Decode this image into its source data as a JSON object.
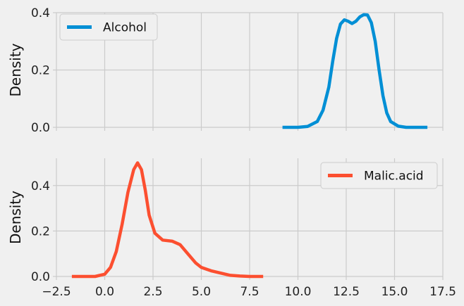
{
  "chart_data": [
    {
      "type": "line",
      "ylabel": "Density",
      "xlabel": "",
      "xlim": [
        -2.5,
        17.5
      ],
      "ylim": [
        0,
        0.4
      ],
      "yticks": [
        0.0,
        0.2,
        0.4
      ],
      "ytick_labels": [
        "0.0",
        "0.2",
        "0.4"
      ],
      "x_tick_labels_shown": false,
      "grid": true,
      "legend_position": "upper-left",
      "series": [
        {
          "name": "Alcohol",
          "color": "#008fd5",
          "x": [
            9.2,
            10.0,
            10.5,
            11.0,
            11.3,
            11.6,
            11.8,
            12.0,
            12.2,
            12.4,
            12.6,
            12.8,
            13.0,
            13.2,
            13.4,
            13.6,
            13.8,
            14.0,
            14.2,
            14.4,
            14.6,
            14.8,
            15.2,
            15.6,
            16.0,
            16.7
          ],
          "y": [
            0.0,
            0.0,
            0.003,
            0.02,
            0.06,
            0.14,
            0.23,
            0.31,
            0.36,
            0.375,
            0.37,
            0.362,
            0.37,
            0.385,
            0.393,
            0.392,
            0.365,
            0.3,
            0.2,
            0.11,
            0.05,
            0.02,
            0.004,
            0.0,
            0.0,
            0.0
          ]
        }
      ]
    },
    {
      "type": "line",
      "ylabel": "Density",
      "xlabel": "",
      "xlim": [
        -2.5,
        17.5
      ],
      "ylim": [
        0,
        0.52
      ],
      "xticks": [
        -2.5,
        0.0,
        2.5,
        5.0,
        7.5,
        10.0,
        12.5,
        15.0,
        17.5
      ],
      "xtick_labels": [
        "−2.5",
        "0.0",
        "2.5",
        "5.0",
        "7.5",
        "10.0",
        "12.5",
        "15.0",
        "17.5"
      ],
      "yticks": [
        0.0,
        0.2,
        0.4
      ],
      "ytick_labels": [
        "0.0",
        "0.2",
        "0.4"
      ],
      "grid": true,
      "legend_position": "upper-right",
      "series": [
        {
          "name": "Malic.acid",
          "color": "#fc4f30",
          "x": [
            -1.7,
            -0.5,
            0.0,
            0.3,
            0.6,
            0.9,
            1.2,
            1.5,
            1.7,
            1.9,
            2.1,
            2.3,
            2.6,
            3.0,
            3.5,
            3.9,
            4.3,
            4.7,
            5.0,
            5.5,
            6.0,
            6.5,
            7.0,
            7.5,
            8.2
          ],
          "y": [
            0.0,
            0.0,
            0.01,
            0.04,
            0.11,
            0.23,
            0.37,
            0.47,
            0.5,
            0.47,
            0.38,
            0.27,
            0.19,
            0.16,
            0.155,
            0.14,
            0.1,
            0.06,
            0.04,
            0.025,
            0.015,
            0.005,
            0.002,
            0.0,
            0.0
          ]
        }
      ]
    }
  ]
}
